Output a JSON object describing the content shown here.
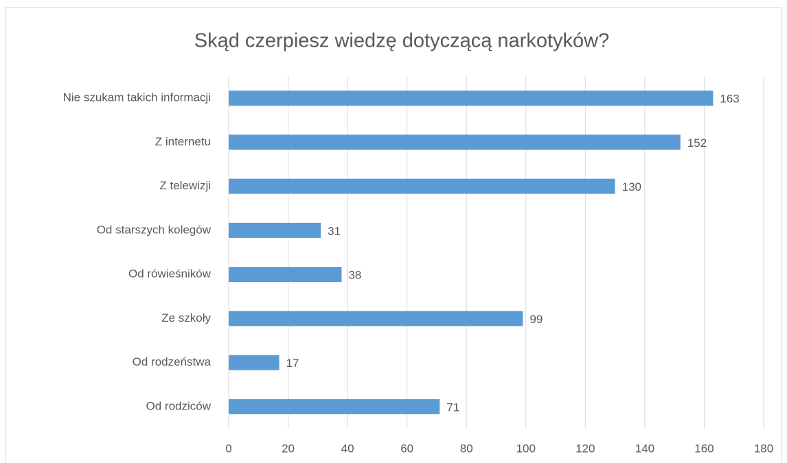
{
  "chart_data": {
    "type": "bar",
    "orientation": "horizontal",
    "title": "Skąd czerpiesz wiedzę dotyczącą narkotyków?",
    "categories": [
      "Nie szukam takich informacji",
      "Z internetu",
      "Z telewizji",
      "Od starszych kolegów",
      "Od rówieśników",
      "Ze szkoły",
      "Od rodzeństwa",
      "Od rodziców"
    ],
    "values": [
      163,
      152,
      130,
      31,
      38,
      99,
      17,
      71
    ],
    "color": "#5b9bd5",
    "xlim": [
      0,
      180
    ],
    "xticks": [
      0,
      20,
      40,
      60,
      80,
      100,
      120,
      140,
      160,
      180
    ],
    "grid": true
  }
}
